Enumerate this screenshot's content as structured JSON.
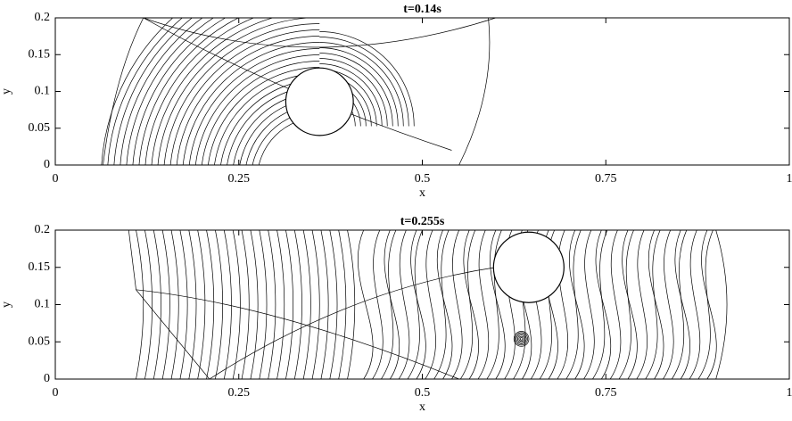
{
  "chart_data": [
    {
      "type": "contour",
      "title": "t=0.14s",
      "x_label": "x",
      "y_label": "y",
      "xlim": [
        0,
        1
      ],
      "ylim": [
        0,
        0.2
      ],
      "xticks": [
        0,
        0.25,
        0.5,
        0.75,
        1
      ],
      "yticks": [
        0,
        0.05,
        0.1,
        0.15,
        0.2
      ]
    },
    {
      "type": "contour",
      "title": "t=0.255s",
      "x_label": "x",
      "y_label": "y",
      "xlim": [
        0,
        1
      ],
      "ylim": [
        0,
        0.2
      ],
      "xticks": [
        0,
        0.25,
        0.5,
        0.75,
        1
      ],
      "yticks": [
        0,
        0.05,
        0.1,
        0.15,
        0.2
      ]
    }
  ]
}
